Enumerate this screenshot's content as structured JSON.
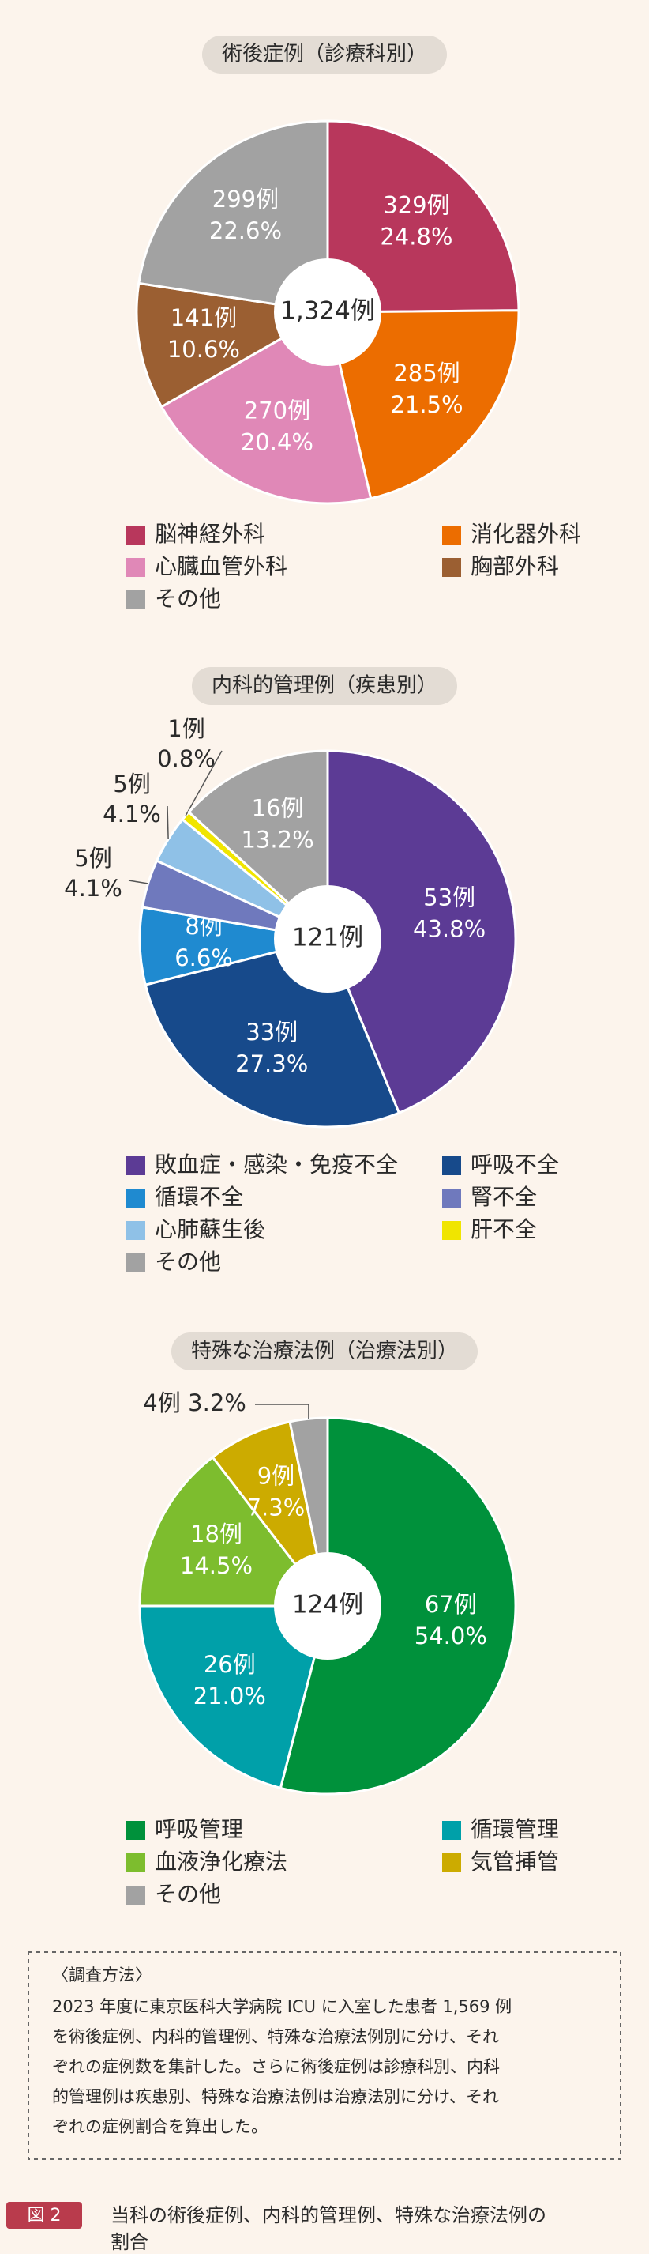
{
  "chart_data": [
    {
      "type": "pie",
      "title": "術後症例（診療科別）",
      "center_label": "1,324例",
      "categories": [
        "脳神経外科",
        "消化器外科",
        "心臓血管外科",
        "胸部外科",
        "その他"
      ],
      "values": [
        329,
        285,
        270,
        141,
        299
      ],
      "value_labels": [
        "329例",
        "285例",
        "270例",
        "141例",
        "299例"
      ],
      "percent_labels": [
        "24.8%",
        "21.5%",
        "20.4%",
        "10.6%",
        "22.6%"
      ],
      "colors": [
        "#b8375c",
        "#ec6d00",
        "#e088b7",
        "#9b5f32",
        "#a2a2a2"
      ]
    },
    {
      "type": "pie",
      "title": "内科的管理例（疾患別）",
      "center_label": "121例",
      "categories": [
        "敗血症・感染・免疫不全",
        "呼吸不全",
        "循環不全",
        "腎不全",
        "心肺蘇生後",
        "肝不全",
        "その他"
      ],
      "values": [
        53,
        33,
        8,
        5,
        5,
        1,
        16
      ],
      "value_labels": [
        "53例",
        "33例",
        "8例",
        "5例",
        "5例",
        "1例",
        "16例"
      ],
      "percent_labels": [
        "43.8%",
        "27.3%",
        "6.6%",
        "4.1%",
        "4.1%",
        "0.8%",
        "13.2%"
      ],
      "colors": [
        "#5c3b95",
        "#174a8b",
        "#1f8ad0",
        "#6f79bd",
        "#8fc1e7",
        "#f0e500",
        "#a2a2a2"
      ]
    },
    {
      "type": "pie",
      "title": "特殊な治療法例（治療法別）",
      "center_label": "124例",
      "categories": [
        "呼吸管理",
        "循環管理",
        "血液浄化療法",
        "気管挿管",
        "その他"
      ],
      "values": [
        67,
        26,
        18,
        9,
        4
      ],
      "value_labels": [
        "67例",
        "26例",
        "18例",
        "9例",
        "4例"
      ],
      "percent_labels": [
        "54.0%",
        "21.0%",
        "14.5%",
        "7.3%",
        "3.2%"
      ],
      "colors": [
        "#00913b",
        "#00a0a9",
        "#7dbd2e",
        "#ccab00",
        "#a2a2a2"
      ]
    }
  ],
  "method": {
    "heading": "〈調査方法〉",
    "lines": [
      "2023 年度に東京医科大学病院 ICU に入室した患者 1,569 例",
      "を術後症例、内科的管理例、特殊な治療法例別に分け、それ",
      "ぞれの症例数を集計した。さらに術後症例は診療科別、内科",
      "的管理例は疾患別、特殊な治療法例は治療法別に分け、それ",
      "ぞれの症例割合を算出した。"
    ]
  },
  "caption": {
    "label": "図 2",
    "lines": [
      "当科の術後症例、内科的管理例、特殊な治療法例の",
      "割合"
    ]
  }
}
